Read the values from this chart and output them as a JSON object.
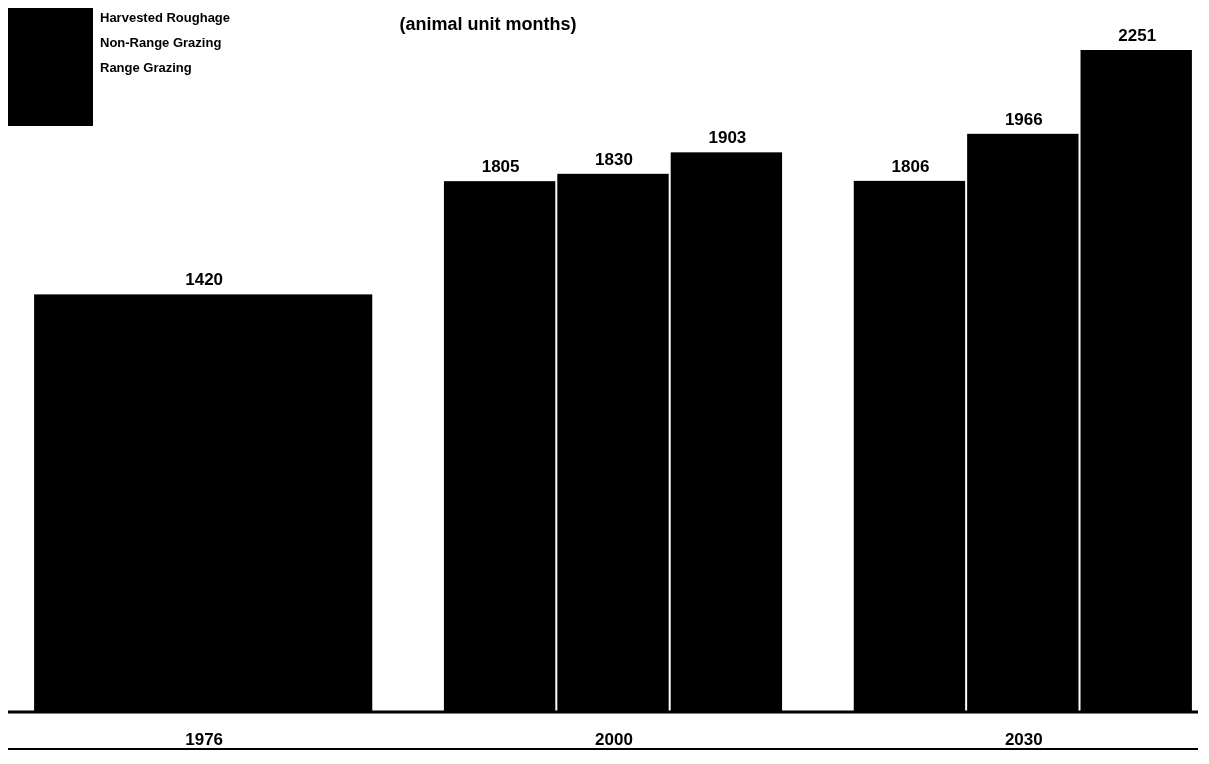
{
  "chart_data": {
    "type": "bar",
    "title": "(animal unit months)",
    "categories": [
      "1976",
      "2000",
      "2030"
    ],
    "series": [
      {
        "color": "#000000",
        "values": [
          1420,
          1805,
          1806
        ]
      },
      {
        "color": "#000000",
        "values": [
          null,
          1830,
          1966
        ]
      },
      {
        "color": "#000000",
        "values": [
          null,
          1903,
          2251
        ]
      }
    ],
    "data_labels": true,
    "annotations": [
      "Harvested Roughage",
      "Non-Range Grazing",
      "Range Grazing"
    ]
  }
}
